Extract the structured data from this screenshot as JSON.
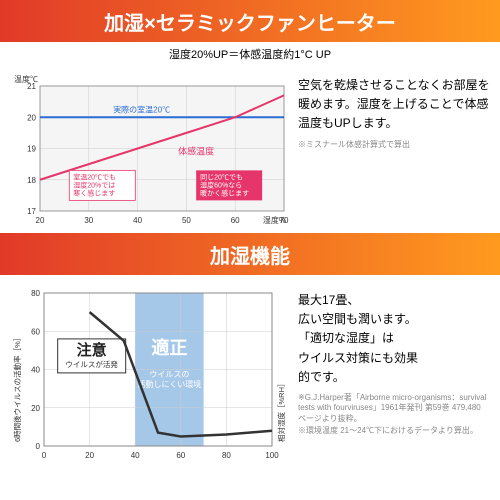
{
  "banner1": {
    "text": "加湿×セラミックファンヒーター",
    "fontsize": 20,
    "gradient_from": "#e13a28",
    "gradient_to": "#ff9a1f"
  },
  "section1": {
    "subtitle": "湿度20%UP＝体感温度約1°C UP",
    "chart": {
      "bg": "#f5f5f5",
      "ylabel": "温度℃",
      "xlabel": "湿度%",
      "xlim": [
        20,
        70
      ],
      "ylim": [
        17,
        21
      ],
      "xticks": [
        20,
        30,
        40,
        50,
        60,
        70
      ],
      "yticks": [
        17,
        18,
        19,
        20,
        21
      ],
      "grid_color": "#cccccc",
      "axis_fontsize": 8,
      "ref_line": {
        "y": 20,
        "color": "#2a6dd4",
        "width": 2,
        "label": "実際の室温20℃",
        "label_color": "#2a6dd4"
      },
      "series": {
        "color": "#e6356a",
        "width": 2,
        "label": "体感温度",
        "points_x": [
          20,
          30,
          40,
          50,
          60,
          70
        ],
        "points_y": [
          18.0,
          18.5,
          19.0,
          19.5,
          20.0,
          20.7
        ]
      },
      "callout_left": {
        "text": "室温20℃でも\n湿度20%では\n寒く感じます",
        "bg": "#ffffff",
        "text_color": "#e6356a",
        "border": "#e6356a"
      },
      "callout_right": {
        "text": "同じ20℃でも\n湿度60%なら\n暖かく感じます",
        "bg": "#e6356a",
        "text_color": "#ffffff"
      }
    },
    "body": "空気を乾燥させることなくお部屋を暖めます。湿度を上げることで体感温度もUPします。",
    "note": "※ミスナール体感計算式で算出"
  },
  "banner2": {
    "text": "加湿機能",
    "fontsize": 20,
    "gradient_from": "#e13a28",
    "gradient_to": "#ff9a1f"
  },
  "section2": {
    "chart": {
      "ylabel": "6時間後ウイルスの活動率［%］",
      "xlabel": "相対湿度［%RH］",
      "xlim": [
        0,
        100
      ],
      "ylim": [
        0,
        80
      ],
      "xticks": [
        0,
        20,
        40,
        60,
        80,
        100
      ],
      "yticks": [
        0,
        20,
        40,
        60,
        80
      ],
      "axis_fontsize": 8,
      "grid_color": "#cccccc",
      "zone_caution": {
        "x_from": 0,
        "x_to": 40,
        "title": "注意",
        "sub": "ウイルスが活発",
        "title_color": "#222"
      },
      "zone_ok": {
        "x_from": 40,
        "x_to": 70,
        "bg": "#a6c8e8",
        "title": "適正",
        "sub": "ウイルスの\n活動しにくい環境",
        "title_color": "#fff"
      },
      "series": {
        "color": "#333333",
        "width": 2.5,
        "points_x": [
          20,
          35,
          50,
          60,
          80,
          100
        ],
        "points_y": [
          70,
          55,
          7,
          5,
          6,
          8
        ]
      }
    },
    "body": "最大17畳、\n広い空間も潤います。\n「適切な湿度」は\nウイルス対策にも効果\n的です。",
    "note1": "※G.J.Harper著「Airborne micro-organisms：survival tests with fourviruses」1961年発刊 第59巻 479,480 ページより抜粋。",
    "note2": "※環境温度 21～24℃下におけるデータより算出。"
  }
}
